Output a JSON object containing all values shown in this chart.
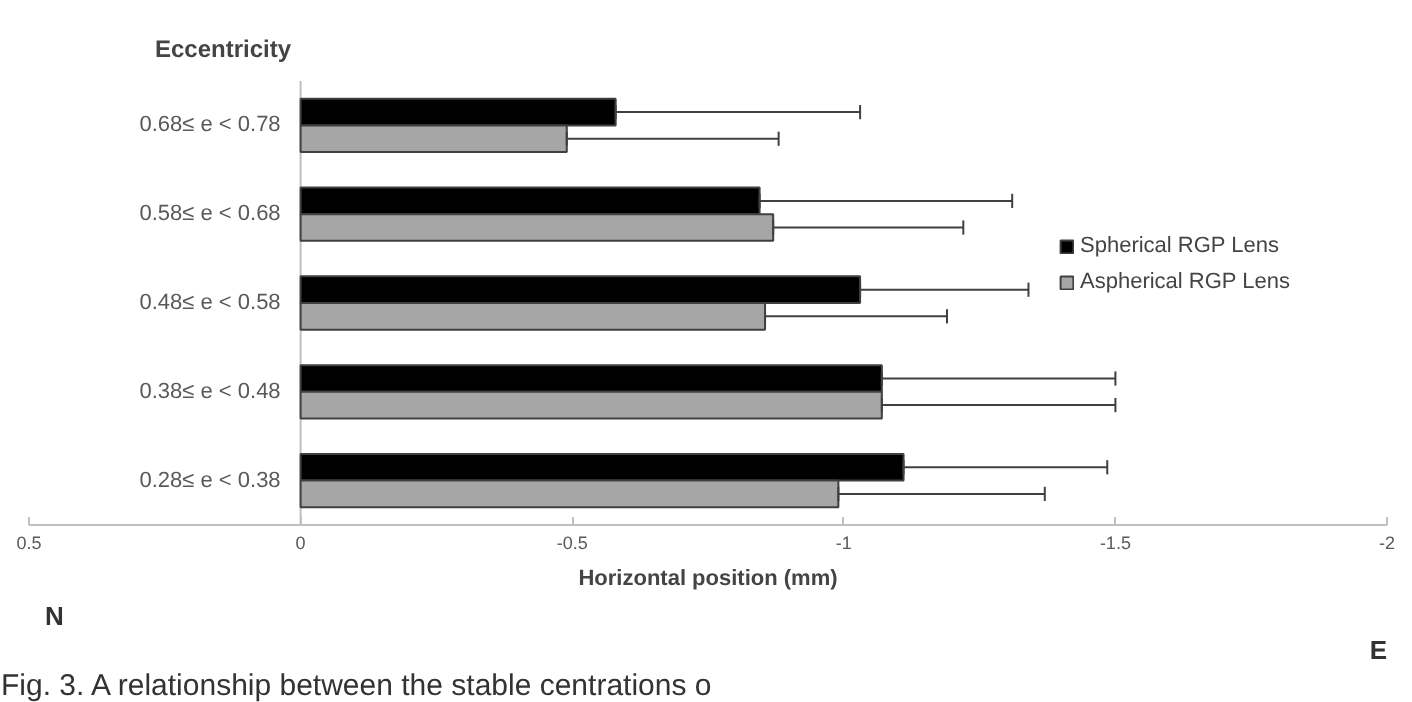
{
  "chart_data": {
    "type": "bar",
    "orientation": "horizontal",
    "title": "Eccentricity",
    "xlabel": "Horizontal position (mm)",
    "categories": [
      "0.68≤ e < 0.78",
      "0.58≤ e < 0.68",
      "0.48≤ e < 0.58",
      "0.38≤ e < 0.48",
      "0.28≤ e < 0.38"
    ],
    "series": [
      {
        "name": "Spherical RGP Lens",
        "color": "#000000",
        "values": [
          -0.58,
          -0.845,
          -1.03,
          -1.07,
          -1.11
        ],
        "errors": [
          [
            -1.03,
            -0.58
          ],
          [
            -1.31,
            -0.845
          ],
          [
            -1.34,
            -1.03
          ],
          [
            -1.5,
            -1.07
          ],
          [
            -1.485,
            -1.11
          ]
        ]
      },
      {
        "name": "Aspherical RGP Lens",
        "color": "#a6a6a6",
        "values": [
          -0.49,
          -0.87,
          -0.855,
          -1.07,
          -0.99
        ],
        "errors": [
          [
            -0.88,
            -0.49
          ],
          [
            -1.22,
            -0.87
          ],
          [
            -1.19,
            -0.855
          ],
          [
            -1.5,
            -1.07
          ],
          [
            -1.37,
            -0.99
          ]
        ]
      }
    ],
    "xlim": [
      0.5,
      -2
    ],
    "xticks": [
      0.5,
      0,
      -0.5,
      -1,
      -1.5,
      -2
    ],
    "grid": false,
    "legend": "right",
    "annotations": [
      "N",
      "E",
      "Fig. 3.  A relationship between the stable centrations o"
    ]
  }
}
